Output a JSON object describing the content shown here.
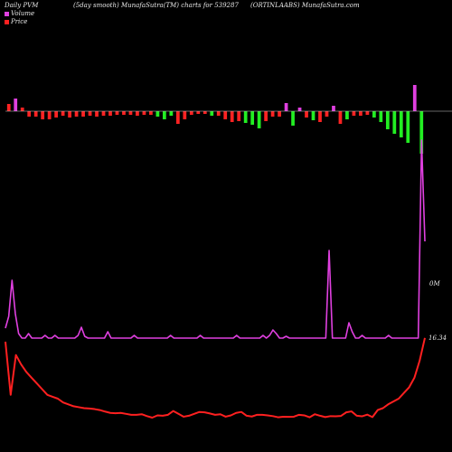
{
  "chart_data": {
    "type": "line",
    "title_left": "Daily PVM",
    "title_middle": "(5day smooth) MunafaSutra(TM) charts for 539287",
    "title_right": "(ORTINLAABS) MunafaSutra.com",
    "legend": [
      {
        "label": "Volume",
        "color": "#e040e0"
      },
      {
        "label": "Price",
        "color": "#ff2020"
      }
    ],
    "right_labels": {
      "volume": "0M",
      "price": "16.34"
    },
    "colors": {
      "background": "#000000",
      "bar_up": "#22ee22",
      "bar_down": "#ff2222",
      "bar_positive": "#e040e0",
      "baseline": "#cccccc",
      "volume_line": "#e040e0",
      "price_line": "#ff2020"
    },
    "pvm_bars": [
      {
        "v": 8,
        "c": "down"
      },
      {
        "v": 14,
        "c": "pos"
      },
      {
        "v": 4,
        "c": "down"
      },
      {
        "v": -6,
        "c": "down"
      },
      {
        "v": -6,
        "c": "down"
      },
      {
        "v": -9,
        "c": "down"
      },
      {
        "v": -9,
        "c": "down"
      },
      {
        "v": -7,
        "c": "down"
      },
      {
        "v": -5,
        "c": "down"
      },
      {
        "v": -7,
        "c": "down"
      },
      {
        "v": -6,
        "c": "down"
      },
      {
        "v": -6,
        "c": "down"
      },
      {
        "v": -5,
        "c": "down"
      },
      {
        "v": -6,
        "c": "down"
      },
      {
        "v": -5,
        "c": "down"
      },
      {
        "v": -5,
        "c": "down"
      },
      {
        "v": -4,
        "c": "down"
      },
      {
        "v": -4,
        "c": "down"
      },
      {
        "v": -4,
        "c": "down"
      },
      {
        "v": -5,
        "c": "down"
      },
      {
        "v": -4,
        "c": "down"
      },
      {
        "v": -4,
        "c": "down"
      },
      {
        "v": -6,
        "c": "up"
      },
      {
        "v": -9,
        "c": "up"
      },
      {
        "v": -5,
        "c": "up"
      },
      {
        "v": -14,
        "c": "down"
      },
      {
        "v": -9,
        "c": "down"
      },
      {
        "v": -4,
        "c": "down"
      },
      {
        "v": -3,
        "c": "down"
      },
      {
        "v": -3,
        "c": "down"
      },
      {
        "v": -5,
        "c": "up"
      },
      {
        "v": -5,
        "c": "down"
      },
      {
        "v": -9,
        "c": "down"
      },
      {
        "v": -12,
        "c": "down"
      },
      {
        "v": -11,
        "c": "down"
      },
      {
        "v": -13,
        "c": "up"
      },
      {
        "v": -15,
        "c": "up"
      },
      {
        "v": -19,
        "c": "up"
      },
      {
        "v": -11,
        "c": "down"
      },
      {
        "v": -6,
        "c": "down"
      },
      {
        "v": -6,
        "c": "down"
      },
      {
        "v": 9,
        "c": "pos"
      },
      {
        "v": -16,
        "c": "up"
      },
      {
        "v": 4,
        "c": "pos"
      },
      {
        "v": -7,
        "c": "down"
      },
      {
        "v": -10,
        "c": "up"
      },
      {
        "v": -12,
        "c": "down"
      },
      {
        "v": -6,
        "c": "down"
      },
      {
        "v": 6,
        "c": "pos"
      },
      {
        "v": -14,
        "c": "down"
      },
      {
        "v": -9,
        "c": "up"
      },
      {
        "v": -5,
        "c": "down"
      },
      {
        "v": -5,
        "c": "down"
      },
      {
        "v": -4,
        "c": "down"
      },
      {
        "v": -7,
        "c": "up"
      },
      {
        "v": -12,
        "c": "up"
      },
      {
        "v": -20,
        "c": "up"
      },
      {
        "v": -25,
        "c": "up"
      },
      {
        "v": -29,
        "c": "up"
      },
      {
        "v": -35,
        "c": "up"
      },
      {
        "v": 29,
        "c": "pos"
      },
      {
        "v": -47,
        "c": "up"
      }
    ],
    "volume_line": [
      14,
      27,
      67,
      30,
      8,
      3,
      3,
      8,
      3,
      3,
      3,
      3,
      6,
      3,
      3,
      6,
      3,
      3,
      3,
      3,
      3,
      3,
      6,
      15,
      5,
      3,
      3,
      3,
      3,
      3,
      3,
      10,
      3,
      3,
      3,
      3,
      3,
      3,
      3,
      6,
      3,
      3,
      3,
      3,
      3,
      3,
      3,
      3,
      3,
      3,
      6,
      3,
      3,
      3,
      3,
      3,
      3,
      3,
      3,
      6,
      3,
      3,
      3,
      3,
      3,
      3,
      3,
      3,
      3,
      3,
      6,
      3,
      3,
      3,
      3,
      3,
      3,
      3,
      6,
      3,
      6,
      12,
      8,
      3,
      3,
      5,
      3,
      3,
      3,
      3,
      3,
      3,
      3,
      3,
      3,
      3,
      3,
      3,
      100,
      3,
      3,
      3,
      3,
      3,
      20,
      10,
      3,
      3,
      6,
      3,
      3,
      3,
      3,
      3,
      3,
      3,
      6,
      3,
      3,
      3,
      3,
      3,
      3,
      3,
      3,
      3,
      222,
      110
    ],
    "price_line": [
      40,
      12,
      33,
      28,
      24,
      21,
      18,
      15,
      12,
      11,
      10,
      8,
      7,
      6,
      5.5,
      5,
      4.8,
      4.5,
      4,
      3.2,
      2.5,
      2.3,
      2.5,
      2,
      1.5,
      1.5,
      1.8,
      0.8,
      0,
      1.2,
      1,
      1.5,
      3.5,
      2,
      0.5,
      1,
      2,
      3,
      2.8,
      2.2,
      1.5,
      1.8,
      0.5,
      1.2,
      2.5,
      3,
      1,
      0.6,
      1.5,
      1.5,
      1.2,
      0.8,
      0.2,
      0.5,
      0.4,
      0.5,
      1.5,
      1.2,
      0.2,
      1.8,
      1,
      0.3,
      0.8,
      0.7,
      0.9,
      2.8,
      3.3,
      1,
      0.7,
      1.6,
      0.3,
      4,
      5,
      7,
      8.5,
      10,
      13,
      16,
      21,
      30,
      42
    ]
  }
}
